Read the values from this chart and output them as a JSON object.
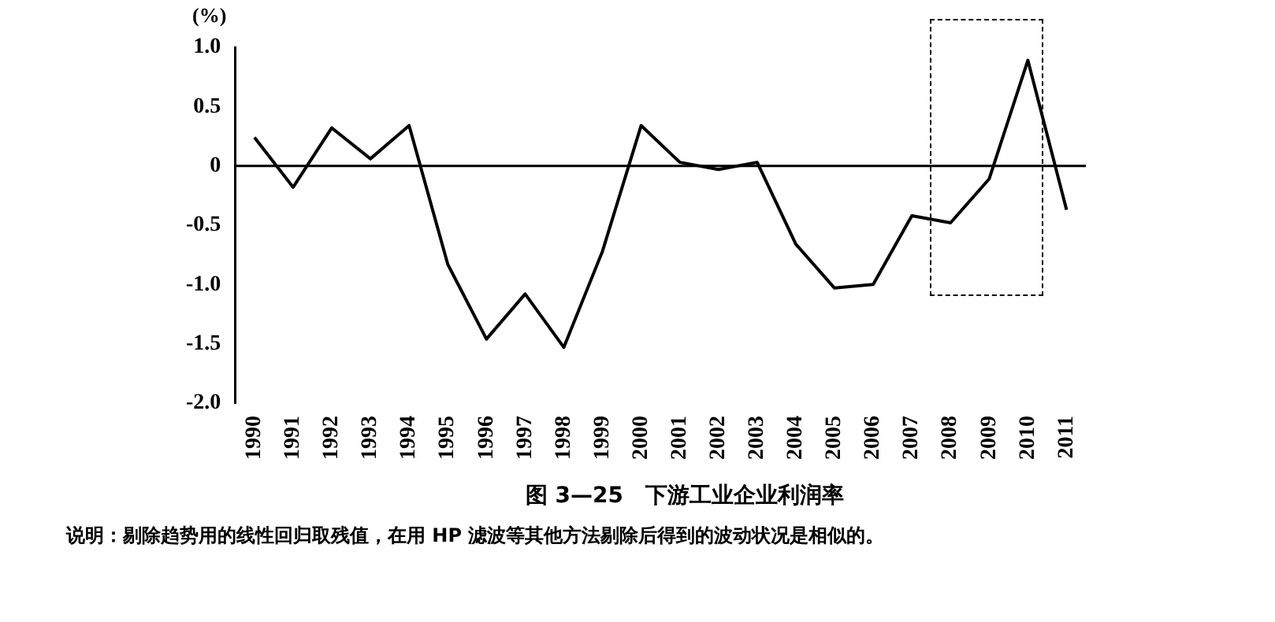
{
  "chart_data": {
    "type": "line",
    "title": "图 3—25　下游工业企业利润率",
    "ylabel": "(%)",
    "annotations": [
      "说明：剔除趋势用的线性回归取残值，在用 HP 滤波等其他方法剔除后得到的波动状况是相似的。"
    ],
    "categories": [
      "1990",
      "1991",
      "1992",
      "1993",
      "1994",
      "1995",
      "1996",
      "1997",
      "1998",
      "1999",
      "2000",
      "2001",
      "2002",
      "2003",
      "2004",
      "2005",
      "2006",
      "2007",
      "2008",
      "2009",
      "2010",
      "2011"
    ],
    "series": [
      {
        "color": "#000000",
        "values": [
          0.24,
          -0.18,
          0.32,
          0.06,
          0.34,
          -0.83,
          -1.46,
          -1.08,
          -1.53,
          -0.72,
          0.34,
          0.03,
          -0.03,
          0.03,
          -0.66,
          -1.03,
          -1.0,
          -0.42,
          -0.48,
          -0.11,
          0.89,
          -0.37
        ]
      }
    ],
    "ylim": [
      -2.0,
      1.0
    ],
    "yticks": [
      {
        "value": -2,
        "label": "-2.0"
      },
      {
        "value": -1.5,
        "label": "-1.5"
      },
      {
        "value": -1,
        "label": "-1.0"
      },
      {
        "value": -0.5,
        "label": "-0.5"
      },
      0,
      {
        "value": 0.5,
        "label": "0.5"
      },
      {
        "value": 1,
        "label": "1.0"
      }
    ],
    "ref_lines": [
      {
        "axis": "y",
        "value": 0,
        "color": "#000000"
      }
    ],
    "grid": false,
    "legend": false,
    "marker": "none",
    "line_style": "solid"
  }
}
